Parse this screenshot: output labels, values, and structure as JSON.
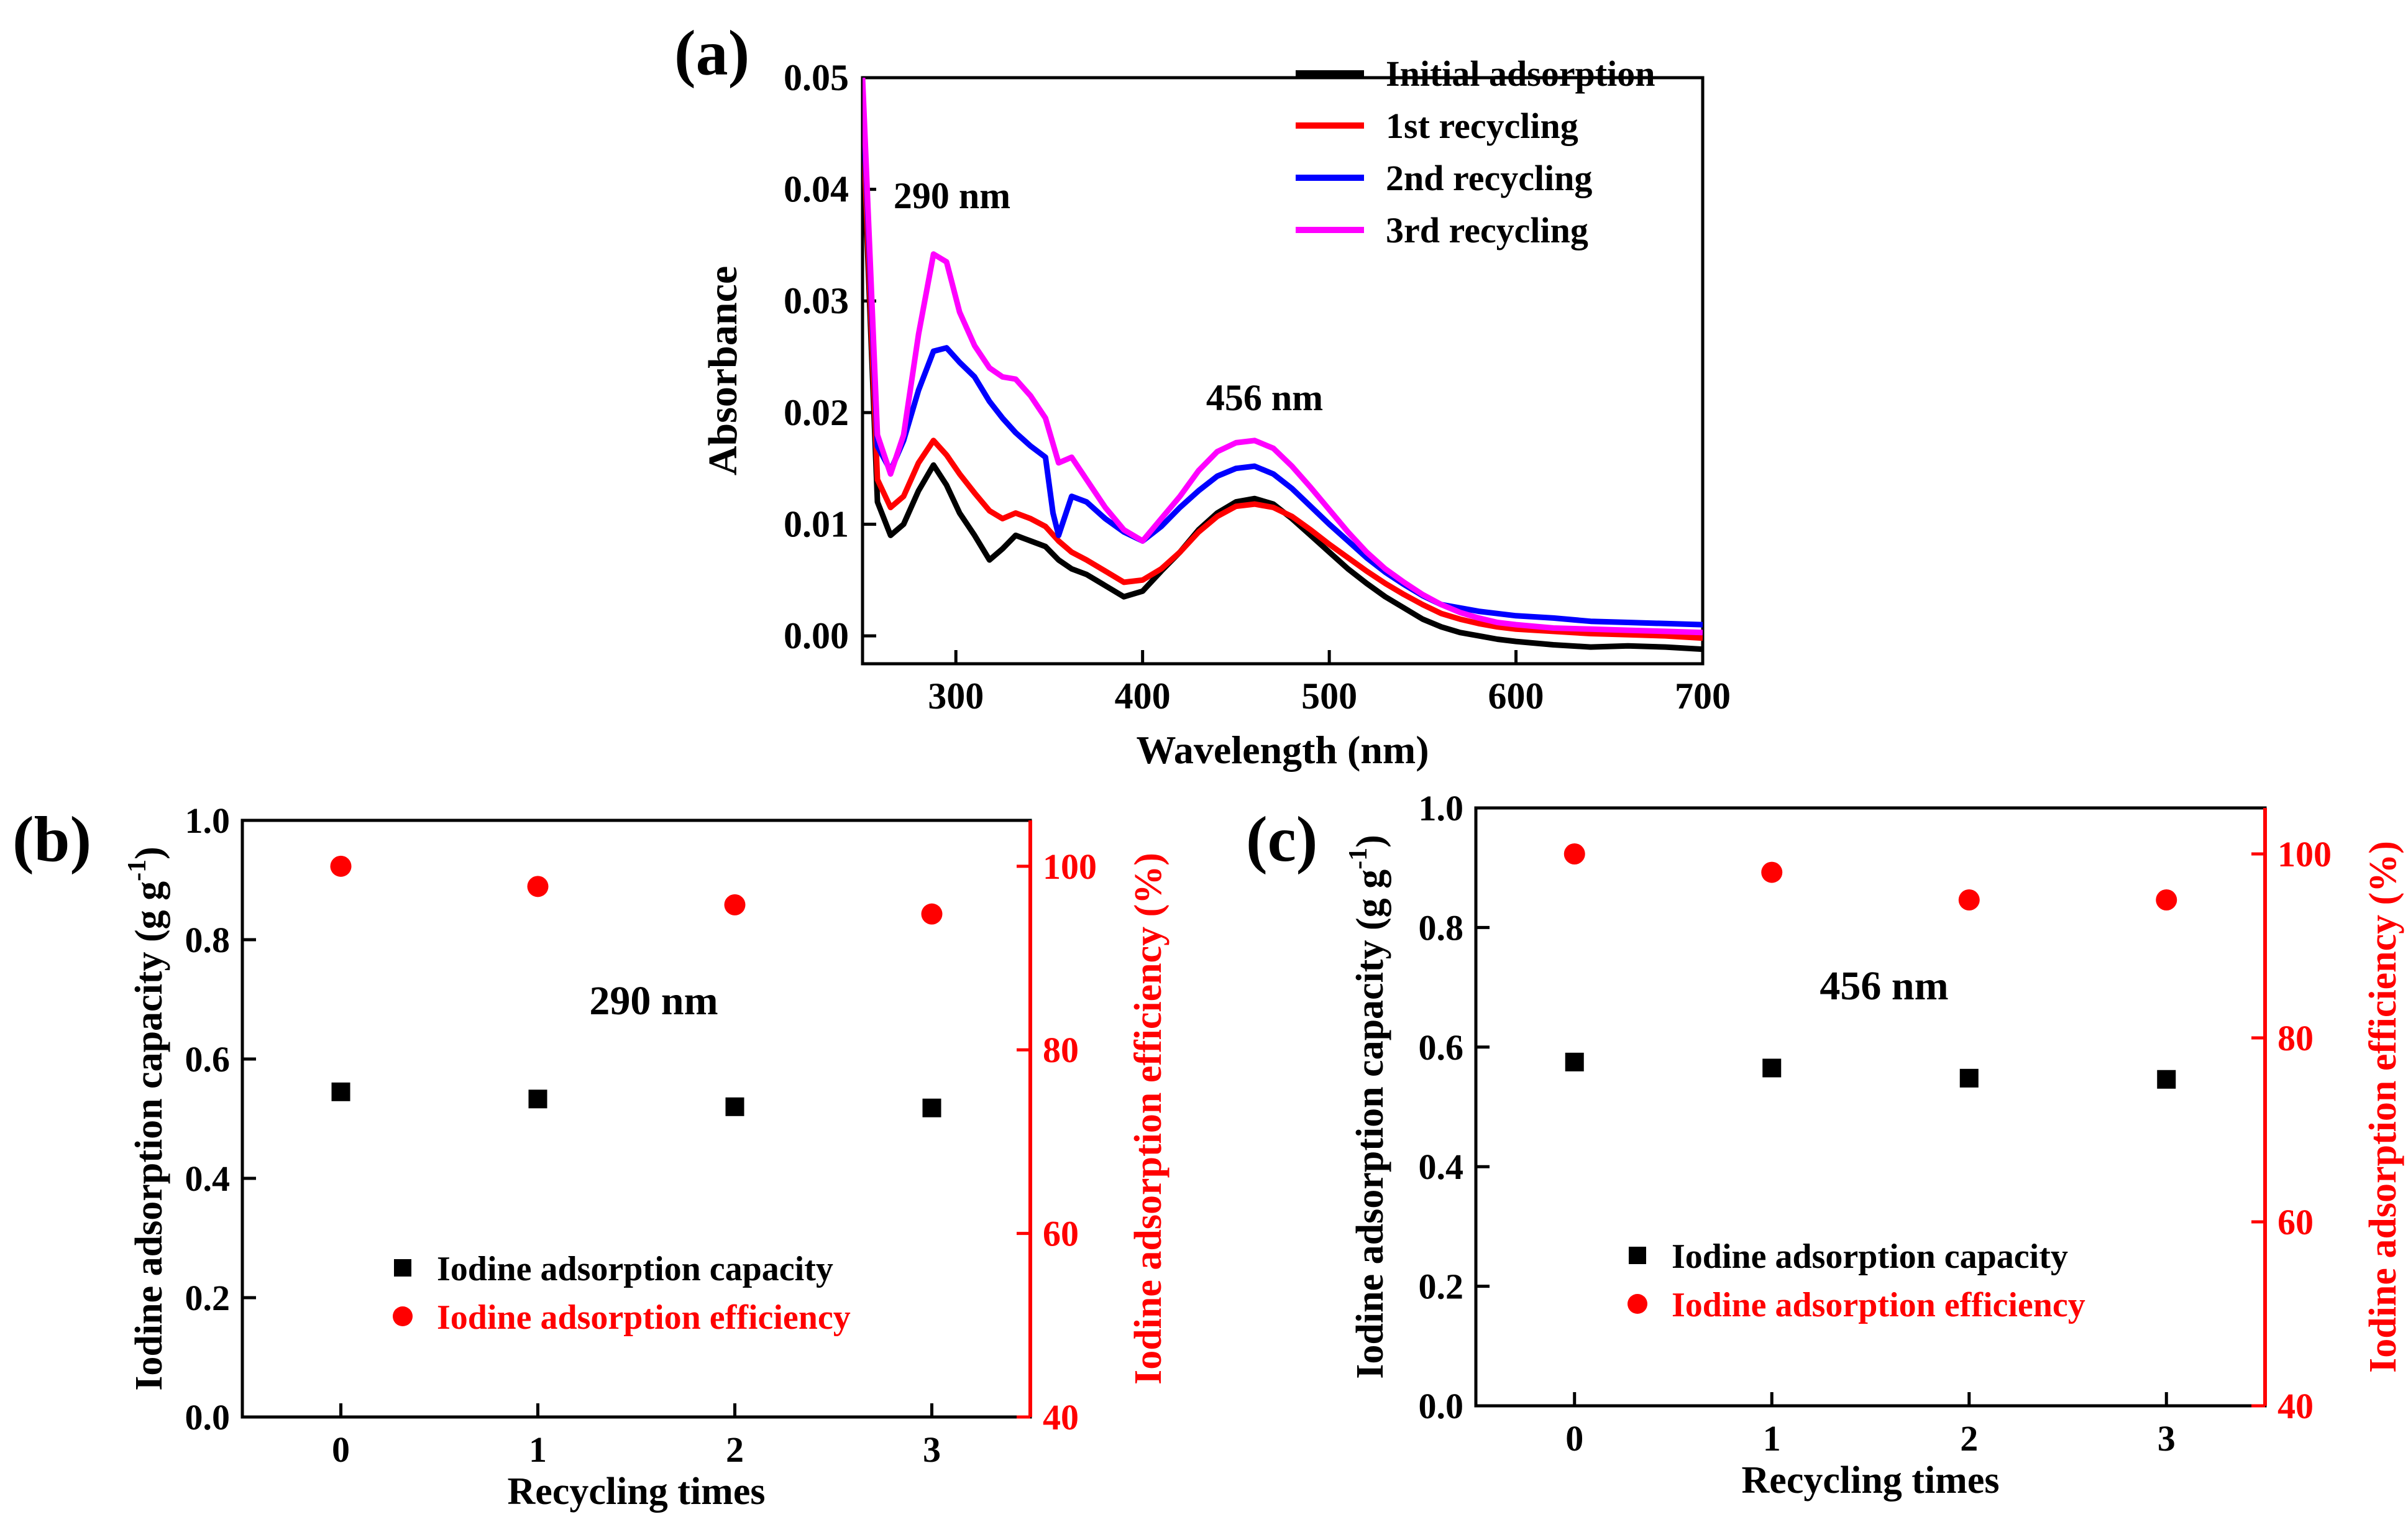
{
  "chart_data": [
    {
      "id": "a",
      "panel_label": "(a)",
      "type": "line",
      "xlabel": "Wavelength (nm)",
      "ylabel": "Absorbance",
      "xlim": [
        250,
        700
      ],
      "ylim": [
        -0.0025,
        0.05
      ],
      "xticks": [
        300,
        400,
        500,
        600,
        700
      ],
      "xtick_labels": [
        "300",
        "400",
        "500",
        "600",
        "700"
      ],
      "yticks": [
        0.0,
        0.01,
        0.02,
        0.03,
        0.04,
        0.05
      ],
      "ytick_labels": [
        "0.00",
        "0.01",
        "0.02",
        "0.03",
        "0.04",
        "0.05"
      ],
      "legend_position": "top-right",
      "annotations": [
        "290 nm",
        "456 nm"
      ],
      "series": [
        {
          "name": "Initial adsorption",
          "color": "#000000",
          "x": [
            250,
            258,
            265,
            272,
            280,
            288,
            295,
            302,
            310,
            318,
            325,
            332,
            340,
            348,
            355,
            362,
            370,
            380,
            390,
            400,
            410,
            420,
            430,
            440,
            450,
            460,
            470,
            480,
            490,
            500,
            510,
            520,
            530,
            540,
            550,
            560,
            570,
            580,
            590,
            600,
            620,
            640,
            660,
            680,
            700
          ],
          "y": [
            0.046,
            0.012,
            0.009,
            0.01,
            0.013,
            0.0153,
            0.0135,
            0.011,
            0.009,
            0.0068,
            0.0078,
            0.009,
            0.0085,
            0.008,
            0.0068,
            0.006,
            0.0055,
            0.0045,
            0.0035,
            0.004,
            0.0058,
            0.0075,
            0.0095,
            0.011,
            0.012,
            0.0123,
            0.0118,
            0.0105,
            0.009,
            0.0075,
            0.006,
            0.0047,
            0.0035,
            0.0025,
            0.0015,
            0.0008,
            0.0003,
            0.0,
            -0.0003,
            -0.0005,
            -0.0008,
            -0.001,
            -0.0009,
            -0.001,
            -0.0012
          ]
        },
        {
          "name": "1st recycling",
          "color": "#ff0000",
          "x": [
            250,
            258,
            265,
            272,
            280,
            288,
            295,
            302,
            310,
            318,
            325,
            332,
            340,
            348,
            355,
            362,
            370,
            380,
            390,
            400,
            410,
            420,
            430,
            440,
            450,
            460,
            470,
            480,
            490,
            500,
            510,
            520,
            530,
            540,
            550,
            560,
            570,
            580,
            590,
            600,
            620,
            640,
            660,
            680,
            700
          ],
          "y": [
            0.047,
            0.014,
            0.0115,
            0.0125,
            0.0155,
            0.0175,
            0.0162,
            0.0145,
            0.0128,
            0.0112,
            0.0105,
            0.011,
            0.0105,
            0.0098,
            0.0085,
            0.0075,
            0.0068,
            0.0058,
            0.0048,
            0.005,
            0.006,
            0.0075,
            0.0093,
            0.0107,
            0.0116,
            0.0118,
            0.0115,
            0.0107,
            0.0095,
            0.0082,
            0.007,
            0.0058,
            0.0047,
            0.0037,
            0.0028,
            0.002,
            0.0015,
            0.0011,
            0.0008,
            0.0006,
            0.0004,
            0.0002,
            0.0001,
            0.0,
            -0.0002
          ]
        },
        {
          "name": "2nd recycling",
          "color": "#0000ff",
          "x": [
            250,
            258,
            265,
            272,
            280,
            288,
            295,
            302,
            310,
            318,
            325,
            332,
            340,
            348,
            352,
            355,
            362,
            370,
            380,
            390,
            400,
            410,
            420,
            430,
            440,
            450,
            460,
            470,
            480,
            490,
            500,
            510,
            520,
            530,
            540,
            550,
            560,
            570,
            580,
            590,
            600,
            620,
            640,
            660,
            680,
            700
          ],
          "y": [
            0.049,
            0.017,
            0.0148,
            0.0175,
            0.022,
            0.0255,
            0.0258,
            0.0245,
            0.0232,
            0.021,
            0.0195,
            0.0182,
            0.017,
            0.016,
            0.011,
            0.009,
            0.0125,
            0.012,
            0.0105,
            0.0093,
            0.0085,
            0.0098,
            0.0115,
            0.013,
            0.0143,
            0.015,
            0.0152,
            0.0145,
            0.0132,
            0.0116,
            0.01,
            0.0085,
            0.007,
            0.0057,
            0.0046,
            0.0036,
            0.0028,
            0.0025,
            0.0022,
            0.002,
            0.0018,
            0.0016,
            0.0013,
            0.0012,
            0.0011,
            0.001
          ]
        },
        {
          "name": "3rd recycling",
          "color": "#ff00ff",
          "x": [
            250,
            258,
            265,
            272,
            280,
            288,
            295,
            302,
            310,
            318,
            325,
            332,
            340,
            348,
            355,
            362,
            370,
            380,
            390,
            400,
            410,
            420,
            430,
            440,
            450,
            460,
            470,
            480,
            490,
            500,
            510,
            520,
            530,
            540,
            550,
            560,
            570,
            580,
            590,
            600,
            620,
            640,
            660,
            680,
            700
          ],
          "y": [
            0.05,
            0.018,
            0.0145,
            0.018,
            0.027,
            0.0342,
            0.0335,
            0.029,
            0.026,
            0.024,
            0.0232,
            0.023,
            0.0215,
            0.0195,
            0.0155,
            0.016,
            0.014,
            0.0115,
            0.0095,
            0.0085,
            0.0105,
            0.0125,
            0.0148,
            0.0165,
            0.0173,
            0.0175,
            0.0168,
            0.0152,
            0.0133,
            0.0113,
            0.0093,
            0.0075,
            0.006,
            0.0048,
            0.0037,
            0.0028,
            0.0021,
            0.0016,
            0.0012,
            0.001,
            0.0007,
            0.0006,
            0.0005,
            0.0004,
            0.0003
          ]
        }
      ]
    },
    {
      "id": "b",
      "panel_label": "(b)",
      "type": "scatter",
      "annotation": "290 nm",
      "xlabel": "Recycling times",
      "ylabel": "Iodine adsorption capacity (g g",
      "ylabel_sup": "-1",
      "ylabel_close": ")",
      "y2label": "Iodine adsorption efficiency (%)",
      "xlim": [
        -0.5,
        3.5
      ],
      "ylim": [
        0.0,
        1.0
      ],
      "y2lim": [
        40,
        105
      ],
      "xticks": [
        0,
        1,
        2,
        3
      ],
      "xtick_labels": [
        "0",
        "1",
        "2",
        "3"
      ],
      "yticks": [
        0.0,
        0.2,
        0.4,
        0.6,
        0.8,
        1.0
      ],
      "ytick_labels": [
        "0.0",
        "0.2",
        "0.4",
        "0.6",
        "0.8",
        "1.0"
      ],
      "y2ticks": [
        40,
        60,
        80,
        100
      ],
      "y2tick_labels": [
        "40",
        "60",
        "80",
        "100"
      ],
      "legend_position": "bottom-center",
      "series": [
        {
          "name": "Iodine adsorption capacity",
          "axis": "left",
          "marker": "square",
          "color": "#000000",
          "x": [
            0,
            1,
            2,
            3
          ],
          "values": [
            0.545,
            0.533,
            0.52,
            0.518
          ]
        },
        {
          "name": "Iodine adsorption efficiency",
          "axis": "right",
          "marker": "circle",
          "color": "#ff0000",
          "x": [
            0,
            1,
            2,
            3
          ],
          "values": [
            100,
            97.8,
            95.8,
            94.8
          ]
        }
      ]
    },
    {
      "id": "c",
      "panel_label": "(c)",
      "type": "scatter",
      "annotation": "456 nm",
      "xlabel": "Recycling times",
      "ylabel": "Iodine adsorption capacity (g g",
      "ylabel_sup": "-1",
      "ylabel_close": ")",
      "y2label": "Iodine adsorption efficiency (%)",
      "xlim": [
        -0.5,
        3.5
      ],
      "ylim": [
        0.0,
        1.0
      ],
      "y2lim": [
        40,
        105
      ],
      "xticks": [
        0,
        1,
        2,
        3
      ],
      "xtick_labels": [
        "0",
        "1",
        "2",
        "3"
      ],
      "yticks": [
        0.0,
        0.2,
        0.4,
        0.6,
        0.8,
        1.0
      ],
      "ytick_labels": [
        "0.0",
        "0.2",
        "0.4",
        "0.6",
        "0.8",
        "1.0"
      ],
      "y2ticks": [
        40,
        60,
        80,
        100
      ],
      "y2tick_labels": [
        "40",
        "60",
        "80",
        "100"
      ],
      "legend_position": "bottom-center",
      "series": [
        {
          "name": "Iodine adsorption capacity",
          "axis": "left",
          "marker": "square",
          "color": "#000000",
          "x": [
            0,
            1,
            2,
            3
          ],
          "values": [
            0.575,
            0.565,
            0.548,
            0.546
          ]
        },
        {
          "name": "Iodine adsorption efficiency",
          "axis": "right",
          "marker": "circle",
          "color": "#ff0000",
          "x": [
            0,
            1,
            2,
            3
          ],
          "values": [
            100,
            98,
            95,
            95
          ]
        }
      ]
    }
  ]
}
